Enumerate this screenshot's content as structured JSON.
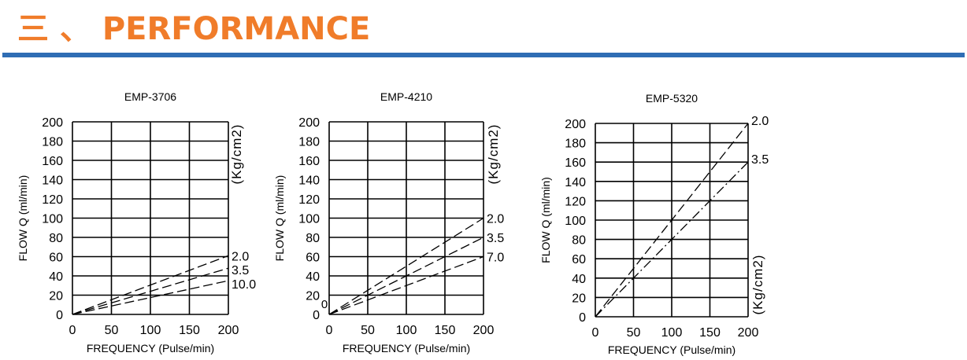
{
  "header": {
    "title": "三 、 PERFORMANCE",
    "accent_color": "#f07c2a",
    "rule_color": "#2f6db4"
  },
  "chart_data": [
    {
      "type": "line",
      "title": "EMP-3706",
      "xlabel": "FREQUENCY (Pulse/min)",
      "ylabel": "FLOW  Q (ml/min)",
      "unit_label": "(Kg/cm2)",
      "xlim": [
        0,
        200
      ],
      "ylim": [
        0,
        200
      ],
      "xticks": [
        "0",
        "50",
        "100",
        "150",
        "200"
      ],
      "yticks": [
        "0",
        "20",
        "40",
        "60",
        "80",
        "100",
        "120",
        "140",
        "160",
        "180",
        "200"
      ],
      "grid": true,
      "series": [
        {
          "name": "2.0",
          "x": [
            0,
            200
          ],
          "y": [
            0,
            61
          ],
          "style": "dashed"
        },
        {
          "name": "3.5",
          "x": [
            0,
            200
          ],
          "y": [
            0,
            48
          ],
          "style": "dashed"
        },
        {
          "name": "10.0",
          "x": [
            0,
            200
          ],
          "y": [
            0,
            35
          ],
          "style": "dashed"
        }
      ]
    },
    {
      "type": "line",
      "title": "EMP-4210",
      "xlabel": "FREQUENCY (Pulse/min)",
      "ylabel": "FLOW  Q (ml/min)",
      "unit_label": "(Kg/cm2)",
      "xlim": [
        0,
        200
      ],
      "ylim": [
        0,
        200
      ],
      "xticks": [
        "0",
        "50",
        "100",
        "150",
        "200"
      ],
      "yticks": [
        "0",
        "20",
        "40",
        "60",
        "80",
        "100",
        "120",
        "140",
        "160",
        "180",
        "200"
      ],
      "grid": true,
      "stray_text": "0",
      "series": [
        {
          "name": "2.0",
          "x": [
            0,
            200
          ],
          "y": [
            0,
            100
          ],
          "style": "dashed"
        },
        {
          "name": "3.5",
          "x": [
            0,
            200
          ],
          "y": [
            0,
            80
          ],
          "style": "dashed"
        },
        {
          "name": "7.0",
          "x": [
            0,
            200
          ],
          "y": [
            0,
            60
          ],
          "style": "dashed"
        }
      ]
    },
    {
      "type": "line",
      "title": "EMP-5320",
      "xlabel": "FREQUENCY (Pulse/min)",
      "ylabel": "FLOW  Q (ml/min)",
      "unit_label": "(Kg/cm2)",
      "xlim": [
        0,
        200
      ],
      "ylim": [
        0,
        200
      ],
      "xticks": [
        "0",
        "50",
        "100",
        "150",
        "200"
      ],
      "yticks": [
        "0",
        "20",
        "40",
        "60",
        "80",
        "100",
        "120",
        "140",
        "160",
        "180",
        "200"
      ],
      "grid": true,
      "series": [
        {
          "name": "2.0",
          "x": [
            0,
            200
          ],
          "y": [
            0,
            200
          ],
          "style": "dashed"
        },
        {
          "name": "3.5",
          "x": [
            0,
            200
          ],
          "y": [
            0,
            160
          ],
          "style": "dashdot"
        }
      ]
    }
  ]
}
